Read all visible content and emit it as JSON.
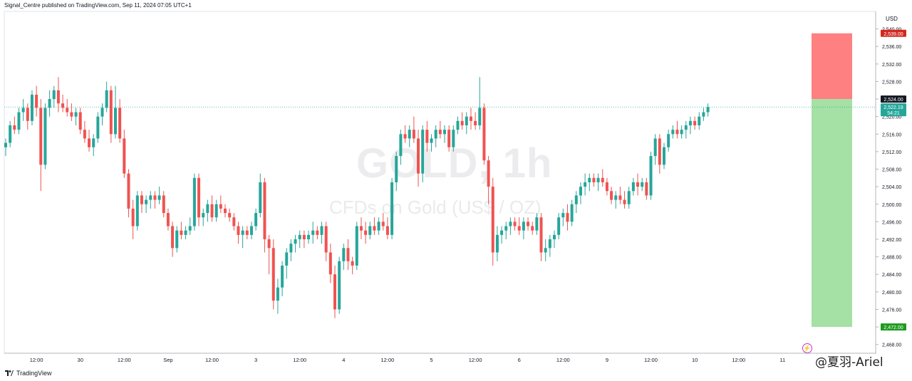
{
  "header": {
    "publisher_line": "Signal_Centre published on TradingView.com, Sep 11, 2024 07:05 UTC+1"
  },
  "watermark": {
    "symbol": "GOLD, 1h",
    "description": "CFDs on Gold (US$ / OZ)"
  },
  "footer": {
    "brand": "TradingView",
    "signature": "@夏羽-Ariel"
  },
  "price_axis": {
    "currency": "USD"
  },
  "colors": {
    "up": "#26a69a",
    "down": "#ef5350",
    "stop_zone": "#ff8080",
    "target_zone": "#a5e0a5",
    "stop_label": "#d3281f",
    "target_label": "#1e9b1e",
    "current_label": "#26a69a",
    "entry_label": "#131722"
  },
  "chart_data": {
    "type": "candlestick",
    "timeframe": "1h",
    "y_ticks": [
      2468,
      2472,
      2476,
      2480,
      2484,
      2488,
      2492,
      2496,
      2500,
      2504,
      2508,
      2512,
      2516,
      2520,
      2524,
      2528,
      2532,
      2536,
      2540
    ],
    "y_tick_labels": [
      "2,468.00",
      "2,472.00",
      "2,476.00",
      "2,480.00",
      "2,484.00",
      "2,488.00",
      "2,492.00",
      "2,496.00",
      "2,500.00",
      "2,504.00",
      "2,508.00",
      "2,512.00",
      "2,516.00",
      "2,520.00",
      "2,524.00",
      "2,528.00",
      "2,532.00",
      "2,536.00",
      "2,540.00"
    ],
    "x_labels": [
      {
        "index": 7,
        "text": "12:00"
      },
      {
        "index": 17,
        "text": "30"
      },
      {
        "index": 27,
        "text": "12:00"
      },
      {
        "index": 37,
        "text": "Sep"
      },
      {
        "index": 47,
        "text": "12:00"
      },
      {
        "index": 57,
        "text": "3"
      },
      {
        "index": 67,
        "text": "12:00"
      },
      {
        "index": 77,
        "text": "4"
      },
      {
        "index": 87,
        "text": "12:00"
      },
      {
        "index": 97,
        "text": "5"
      },
      {
        "index": 107,
        "text": "12:00"
      },
      {
        "index": 117,
        "text": "6"
      },
      {
        "index": 127,
        "text": "12:00"
      },
      {
        "index": 137,
        "text": "9"
      },
      {
        "index": 147,
        "text": "12:00"
      },
      {
        "index": 157,
        "text": "10"
      },
      {
        "index": 167,
        "text": "12:00"
      },
      {
        "index": 177,
        "text": "11"
      }
    ],
    "candles": [
      [
        2513,
        2515,
        2511,
        2514
      ],
      [
        2514,
        2519,
        2513,
        2518
      ],
      [
        2518,
        2520,
        2516,
        2517
      ],
      [
        2517,
        2522,
        2516,
        2521
      ],
      [
        2521,
        2524,
        2519,
        2522
      ],
      [
        2522,
        2523,
        2517,
        2519
      ],
      [
        2519,
        2526,
        2518,
        2525
      ],
      [
        2525,
        2527,
        2520,
        2522
      ],
      [
        2522,
        2524,
        2503,
        2509
      ],
      [
        2509,
        2523,
        2508,
        2522
      ],
      [
        2522,
        2526,
        2520,
        2524
      ],
      [
        2524,
        2527,
        2522,
        2526
      ],
      [
        2526,
        2529,
        2521,
        2523
      ],
      [
        2523,
        2525,
        2521,
        2522
      ],
      [
        2522,
        2524,
        2520,
        2521
      ],
      [
        2521,
        2523,
        2519,
        2520
      ],
      [
        2520,
        2522,
        2518,
        2521
      ],
      [
        2521,
        2522,
        2516,
        2517
      ],
      [
        2517,
        2519,
        2514,
        2515
      ],
      [
        2515,
        2517,
        2512,
        2513
      ],
      [
        2513,
        2516,
        2511,
        2515
      ],
      [
        2515,
        2521,
        2514,
        2520
      ],
      [
        2520,
        2523,
        2518,
        2522
      ],
      [
        2522,
        2528,
        2521,
        2526
      ],
      [
        2526,
        2527,
        2514,
        2516
      ],
      [
        2516,
        2527,
        2515,
        2522
      ],
      [
        2522,
        2524,
        2514,
        2515
      ],
      [
        2515,
        2517,
        2506,
        2507
      ],
      [
        2507,
        2508,
        2497,
        2499
      ],
      [
        2499,
        2501,
        2492,
        2495
      ],
      [
        2495,
        2503,
        2494,
        2502
      ],
      [
        2502,
        2503,
        2498,
        2500
      ],
      [
        2500,
        2502,
        2498,
        2501
      ],
      [
        2501,
        2503,
        2499,
        2502
      ],
      [
        2502,
        2503,
        2499,
        2501
      ],
      [
        2501,
        2504,
        2500,
        2502
      ],
      [
        2502,
        2503,
        2497,
        2498
      ],
      [
        2498,
        2499,
        2494,
        2495
      ],
      [
        2495,
        2496,
        2488,
        2490
      ],
      [
        2490,
        2495,
        2489,
        2494
      ],
      [
        2494,
        2496,
        2492,
        2493
      ],
      [
        2493,
        2495,
        2492,
        2494
      ],
      [
        2494,
        2497,
        2493,
        2495
      ],
      [
        2495,
        2507,
        2494,
        2506
      ],
      [
        2506,
        2507,
        2495,
        2497
      ],
      [
        2497,
        2499,
        2495,
        2498
      ],
      [
        2498,
        2501,
        2496,
        2500
      ],
      [
        2500,
        2502,
        2496,
        2497
      ],
      [
        2497,
        2501,
        2496,
        2500
      ],
      [
        2500,
        2502,
        2498,
        2499
      ],
      [
        2499,
        2500,
        2497,
        2498
      ],
      [
        2498,
        2499,
        2496,
        2497
      ],
      [
        2497,
        2498,
        2494,
        2495
      ],
      [
        2495,
        2496,
        2491,
        2493
      ],
      [
        2493,
        2495,
        2490,
        2494
      ],
      [
        2494,
        2495,
        2492,
        2493
      ],
      [
        2493,
        2496,
        2492,
        2495
      ],
      [
        2495,
        2499,
        2494,
        2498
      ],
      [
        2498,
        2507,
        2497,
        2505
      ],
      [
        2505,
        2506,
        2489,
        2492
      ],
      [
        2492,
        2493,
        2484,
        2490
      ],
      [
        2490,
        2492,
        2476,
        2478
      ],
      [
        2478,
        2483,
        2475,
        2481
      ],
      [
        2481,
        2487,
        2479,
        2486
      ],
      [
        2486,
        2490,
        2483,
        2489
      ],
      [
        2489,
        2492,
        2487,
        2491
      ],
      [
        2491,
        2493,
        2489,
        2492
      ],
      [
        2492,
        2494,
        2490,
        2493
      ],
      [
        2493,
        2494,
        2490,
        2492
      ],
      [
        2492,
        2494,
        2491,
        2493
      ],
      [
        2493,
        2496,
        2491,
        2494
      ],
      [
        2494,
        2495,
        2492,
        2493
      ],
      [
        2493,
        2496,
        2491,
        2495
      ],
      [
        2495,
        2496,
        2487,
        2489
      ],
      [
        2489,
        2491,
        2482,
        2484
      ],
      [
        2484,
        2486,
        2474,
        2476
      ],
      [
        2476,
        2488,
        2475,
        2487
      ],
      [
        2487,
        2491,
        2485,
        2490
      ],
      [
        2490,
        2492,
        2485,
        2487
      ],
      [
        2487,
        2488,
        2484,
        2486
      ],
      [
        2486,
        2496,
        2485,
        2495
      ],
      [
        2495,
        2497,
        2492,
        2494
      ],
      [
        2494,
        2496,
        2491,
        2493
      ],
      [
        2493,
        2496,
        2492,
        2495
      ],
      [
        2495,
        2497,
        2493,
        2494
      ],
      [
        2494,
        2497,
        2493,
        2496
      ],
      [
        2496,
        2498,
        2494,
        2495
      ],
      [
        2495,
        2497,
        2492,
        2493
      ],
      [
        2493,
        2506,
        2492,
        2505
      ],
      [
        2505,
        2512,
        2503,
        2511
      ],
      [
        2511,
        2517,
        2509,
        2516
      ],
      [
        2516,
        2518,
        2514,
        2515
      ],
      [
        2515,
        2518,
        2513,
        2517
      ],
      [
        2517,
        2520,
        2514,
        2515
      ],
      [
        2515,
        2517,
        2504,
        2507
      ],
      [
        2507,
        2518,
        2505,
        2517
      ],
      [
        2517,
        2519,
        2512,
        2514
      ],
      [
        2514,
        2516,
        2512,
        2515
      ],
      [
        2515,
        2518,
        2513,
        2517
      ],
      [
        2517,
        2519,
        2515,
        2516
      ],
      [
        2516,
        2518,
        2514,
        2517
      ],
      [
        2517,
        2518,
        2512,
        2513
      ],
      [
        2513,
        2518,
        2512,
        2517
      ],
      [
        2517,
        2520,
        2516,
        2519
      ],
      [
        2519,
        2521,
        2517,
        2518
      ],
      [
        2518,
        2521,
        2516,
        2520
      ],
      [
        2520,
        2522,
        2517,
        2519
      ],
      [
        2519,
        2521,
        2517,
        2518
      ],
      [
        2518,
        2529,
        2517,
        2522
      ],
      [
        2522,
        2523,
        2509,
        2510
      ],
      [
        2510,
        2511,
        2500,
        2504
      ],
      [
        2504,
        2506,
        2486,
        2489
      ],
      [
        2489,
        2495,
        2487,
        2493
      ],
      [
        2493,
        2495,
        2491,
        2494
      ],
      [
        2494,
        2496,
        2492,
        2495
      ],
      [
        2495,
        2497,
        2493,
        2496
      ],
      [
        2496,
        2497,
        2494,
        2495
      ],
      [
        2495,
        2497,
        2493,
        2494
      ],
      [
        2494,
        2497,
        2492,
        2496
      ],
      [
        2496,
        2497,
        2494,
        2495
      ],
      [
        2495,
        2496,
        2493,
        2494
      ],
      [
        2494,
        2498,
        2493,
        2497
      ],
      [
        2497,
        2498,
        2487,
        2489
      ],
      [
        2489,
        2492,
        2487,
        2490
      ],
      [
        2490,
        2493,
        2488,
        2492
      ],
      [
        2492,
        2494,
        2490,
        2493
      ],
      [
        2493,
        2498,
        2492,
        2497
      ],
      [
        2497,
        2499,
        2495,
        2498
      ],
      [
        2498,
        2500,
        2494,
        2496
      ],
      [
        2496,
        2501,
        2495,
        2500
      ],
      [
        2500,
        2503,
        2498,
        2502
      ],
      [
        2502,
        2505,
        2500,
        2504
      ],
      [
        2504,
        2507,
        2502,
        2505
      ],
      [
        2505,
        2507,
        2503,
        2506
      ],
      [
        2506,
        2507,
        2504,
        2505
      ],
      [
        2505,
        2507,
        2503,
        2506
      ],
      [
        2506,
        2508,
        2504,
        2505
      ],
      [
        2505,
        2506,
        2502,
        2503
      ],
      [
        2503,
        2504,
        2500,
        2501
      ],
      [
        2501,
        2503,
        2499,
        2502
      ],
      [
        2502,
        2504,
        2500,
        2501
      ],
      [
        2501,
        2503,
        2499,
        2500
      ],
      [
        2500,
        2504,
        2499,
        2503
      ],
      [
        2503,
        2506,
        2502,
        2505
      ],
      [
        2505,
        2507,
        2502,
        2504
      ],
      [
        2504,
        2506,
        2503,
        2505
      ],
      [
        2505,
        2506,
        2501,
        2502
      ],
      [
        2502,
        2512,
        2501,
        2511
      ],
      [
        2511,
        2516,
        2509,
        2515
      ],
      [
        2515,
        2516,
        2507,
        2509
      ],
      [
        2509,
        2514,
        2508,
        2513
      ],
      [
        2513,
        2517,
        2512,
        2516
      ],
      [
        2516,
        2518,
        2515,
        2517
      ],
      [
        2517,
        2519,
        2515,
        2516
      ],
      [
        2516,
        2518,
        2515,
        2517
      ],
      [
        2517,
        2519,
        2515,
        2518
      ],
      [
        2518,
        2520,
        2516,
        2519
      ],
      [
        2519,
        2520,
        2517,
        2518
      ],
      [
        2518,
        2521,
        2517,
        2520
      ],
      [
        2520,
        2522,
        2519,
        2521
      ],
      [
        2521,
        2523,
        2520,
        2522.19
      ]
    ],
    "current_price": {
      "value": 2522.19,
      "label": "2,522.19",
      "countdown": "54:21"
    },
    "entry": {
      "value": 2524.0,
      "label": "2,524.00"
    },
    "stop_loss": {
      "value": 2539.0,
      "label": "2,539.00"
    },
    "take_profit": {
      "value": 2472.0,
      "label": "2,472.00"
    },
    "ylim": [
      2466,
      2544
    ]
  }
}
